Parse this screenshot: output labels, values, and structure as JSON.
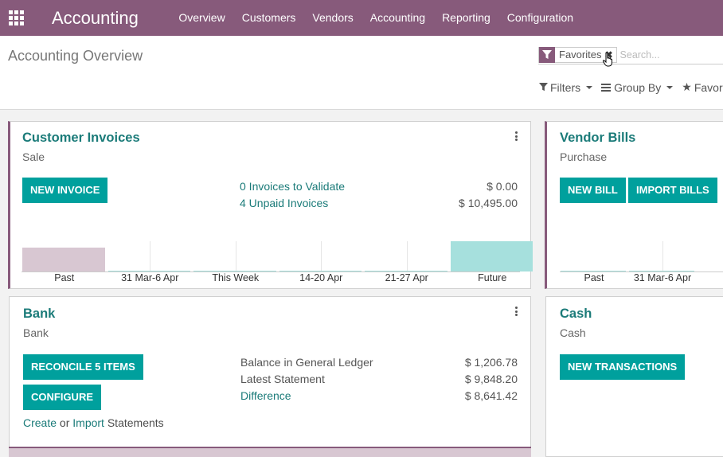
{
  "app": {
    "name": "Accounting"
  },
  "menu": [
    "Overview",
    "Customers",
    "Vendors",
    "Accounting",
    "Reporting",
    "Configuration"
  ],
  "page": {
    "title": "Accounting Overview"
  },
  "search": {
    "facet": "Favorites",
    "facet_remove": "✖",
    "placeholder": "Search..."
  },
  "filters": {
    "filters": "Filters",
    "group_by": "Group By",
    "favorites": "Favor"
  },
  "colors": {
    "brand": "#875a7b",
    "accent": "#00a09d",
    "link": "#1b7b79",
    "past_bar": "#d8c7d2",
    "future_bar": "#a6e0dd"
  },
  "customer_invoices": {
    "title": "Customer Invoices",
    "subtitle": "Sale",
    "button": "NEW INVOICE",
    "rows": [
      {
        "label": "0 Invoices to Validate",
        "amount": "$ 0.00"
      },
      {
        "label": "4 Unpaid Invoices",
        "amount": "$ 10,495.00"
      }
    ],
    "chart_data": {
      "type": "bar",
      "categories": [
        "Past",
        "31 Mar-6 Apr",
        "This Week",
        "14-20 Apr",
        "21-27 Apr",
        "Future"
      ],
      "values": [
        0.8,
        0,
        0,
        0,
        0,
        1.0
      ],
      "bar_colors": [
        "#d8c7d2",
        "#a6e0dd",
        "#a6e0dd",
        "#a6e0dd",
        "#a6e0dd",
        "#a6e0dd"
      ]
    }
  },
  "vendor_bills": {
    "title": "Vendor Bills",
    "subtitle": "Purchase",
    "button_new": "NEW BILL",
    "button_import": "IMPORT BILLS",
    "chart_data": {
      "type": "bar",
      "categories": [
        "Past",
        "31 Mar-6 Apr"
      ],
      "values": [
        0,
        0
      ]
    }
  },
  "bank": {
    "title": "Bank",
    "subtitle": "Bank",
    "button_reconcile": "RECONCILE 5 ITEMS",
    "button_configure": "CONFIGURE",
    "create": "Create",
    "or": " or ",
    "import": "Import",
    "statements": " Statements",
    "rows": [
      {
        "label": "Balance in General Ledger",
        "amount": "$ 1,206.78"
      },
      {
        "label": "Latest Statement",
        "amount": "$ 9,848.20"
      },
      {
        "label": "Difference",
        "amount": "$ 8,641.42"
      }
    ]
  },
  "cash": {
    "title": "Cash",
    "subtitle": "Cash",
    "button": "NEW TRANSACTIONS"
  }
}
